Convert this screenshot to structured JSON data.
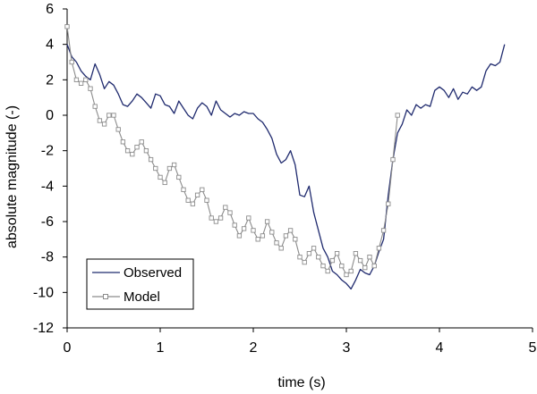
{
  "chart_data": {
    "type": "line",
    "xlabel": "time (s)",
    "ylabel": "absolute magnitude (-)",
    "xlim": [
      0,
      5
    ],
    "ylim": [
      -12,
      6
    ],
    "xticks": [
      "0",
      "1",
      "2",
      "3",
      "4",
      "5"
    ],
    "yticks": [
      "-12",
      "-10",
      "-8",
      "-6",
      "-4",
      "-2",
      "0",
      "2",
      "4",
      "6"
    ],
    "grid": false,
    "legend": "bottom-left",
    "series": [
      {
        "name": "Observed",
        "color": "#1f2a6e",
        "marker": "none",
        "x": [
          0.0,
          0.05,
          0.1,
          0.15,
          0.2,
          0.25,
          0.3,
          0.35,
          0.4,
          0.45,
          0.5,
          0.55,
          0.6,
          0.65,
          0.7,
          0.75,
          0.8,
          0.85,
          0.9,
          0.95,
          1.0,
          1.05,
          1.1,
          1.15,
          1.2,
          1.25,
          1.3,
          1.35,
          1.4,
          1.45,
          1.5,
          1.55,
          1.6,
          1.65,
          1.7,
          1.75,
          1.8,
          1.85,
          1.9,
          1.95,
          2.0,
          2.05,
          2.1,
          2.15,
          2.2,
          2.25,
          2.3,
          2.35,
          2.4,
          2.45,
          2.5,
          2.55,
          2.6,
          2.65,
          2.7,
          2.75,
          2.8,
          2.85,
          2.9,
          2.95,
          3.0,
          3.05,
          3.1,
          3.15,
          3.2,
          3.25,
          3.3,
          3.35,
          3.4,
          3.45,
          3.5,
          3.55,
          3.6,
          3.65,
          3.7,
          3.75,
          3.8,
          3.85,
          3.9,
          3.95,
          4.0,
          4.05,
          4.1,
          4.15,
          4.2,
          4.25,
          4.3,
          4.35,
          4.4,
          4.45,
          4.5,
          4.55,
          4.6,
          4.65,
          4.7
        ],
        "y": [
          4.0,
          3.3,
          3.0,
          2.5,
          2.2,
          2.0,
          2.9,
          2.3,
          1.5,
          1.9,
          1.7,
          1.2,
          0.6,
          0.5,
          0.8,
          1.2,
          1.0,
          0.7,
          0.4,
          1.2,
          1.1,
          0.6,
          0.5,
          0.1,
          0.8,
          0.4,
          0.0,
          -0.2,
          0.4,
          0.7,
          0.5,
          0.0,
          0.8,
          0.3,
          0.1,
          -0.1,
          0.1,
          0.0,
          0.2,
          0.1,
          0.1,
          -0.2,
          -0.4,
          -0.8,
          -1.3,
          -2.2,
          -2.7,
          -2.5,
          -2.0,
          -2.8,
          -4.5,
          -4.6,
          -4.0,
          -5.5,
          -6.5,
          -7.5,
          -8.0,
          -8.8,
          -9.0,
          -9.3,
          -9.5,
          -9.8,
          -9.3,
          -8.7,
          -8.9,
          -9.0,
          -8.5,
          -7.7,
          -7.0,
          -4.5,
          -2.5,
          -1.0,
          -0.5,
          0.3,
          0.0,
          0.6,
          0.4,
          0.6,
          0.5,
          1.4,
          1.6,
          1.4,
          1.0,
          1.5,
          0.9,
          1.3,
          1.2,
          1.6,
          1.4,
          1.6,
          2.5,
          2.9,
          2.8,
          3.0,
          4.0
        ]
      },
      {
        "name": "Model",
        "color": "#8c8c8c",
        "marker": "square",
        "x": [
          0.0,
          0.05,
          0.1,
          0.15,
          0.2,
          0.25,
          0.3,
          0.35,
          0.4,
          0.45,
          0.5,
          0.55,
          0.6,
          0.65,
          0.7,
          0.75,
          0.8,
          0.85,
          0.9,
          0.95,
          1.0,
          1.05,
          1.1,
          1.15,
          1.2,
          1.25,
          1.3,
          1.35,
          1.4,
          1.45,
          1.5,
          1.55,
          1.6,
          1.65,
          1.7,
          1.75,
          1.8,
          1.85,
          1.9,
          1.95,
          2.0,
          2.05,
          2.1,
          2.15,
          2.2,
          2.25,
          2.3,
          2.35,
          2.4,
          2.45,
          2.5,
          2.55,
          2.6,
          2.65,
          2.7,
          2.75,
          2.8,
          2.85,
          2.9,
          2.95,
          3.0,
          3.05,
          3.1,
          3.15,
          3.2,
          3.25,
          3.3,
          3.35,
          3.4,
          3.45,
          3.5,
          3.55
        ],
        "y": [
          5.0,
          3.0,
          2.0,
          1.8,
          2.0,
          1.5,
          0.5,
          -0.3,
          -0.5,
          0.0,
          0.0,
          -0.8,
          -1.5,
          -2.0,
          -2.2,
          -1.8,
          -1.5,
          -2.0,
          -2.5,
          -3.0,
          -3.5,
          -3.8,
          -3.0,
          -2.8,
          -3.5,
          -4.2,
          -4.8,
          -5.0,
          -4.5,
          -4.2,
          -4.8,
          -5.8,
          -6.0,
          -5.8,
          -5.2,
          -5.5,
          -6.2,
          -6.8,
          -6.4,
          -5.8,
          -6.5,
          -7.0,
          -6.8,
          -6.0,
          -6.6,
          -7.2,
          -7.5,
          -6.8,
          -6.5,
          -7.0,
          -8.0,
          -8.3,
          -7.8,
          -7.5,
          -8.0,
          -8.5,
          -8.8,
          -8.2,
          -7.8,
          -8.5,
          -9.0,
          -8.8,
          -7.8,
          -8.2,
          -8.6,
          -8.0,
          -8.5,
          -7.5,
          -6.5,
          -5.0,
          -2.5,
          0.0
        ]
      }
    ]
  }
}
